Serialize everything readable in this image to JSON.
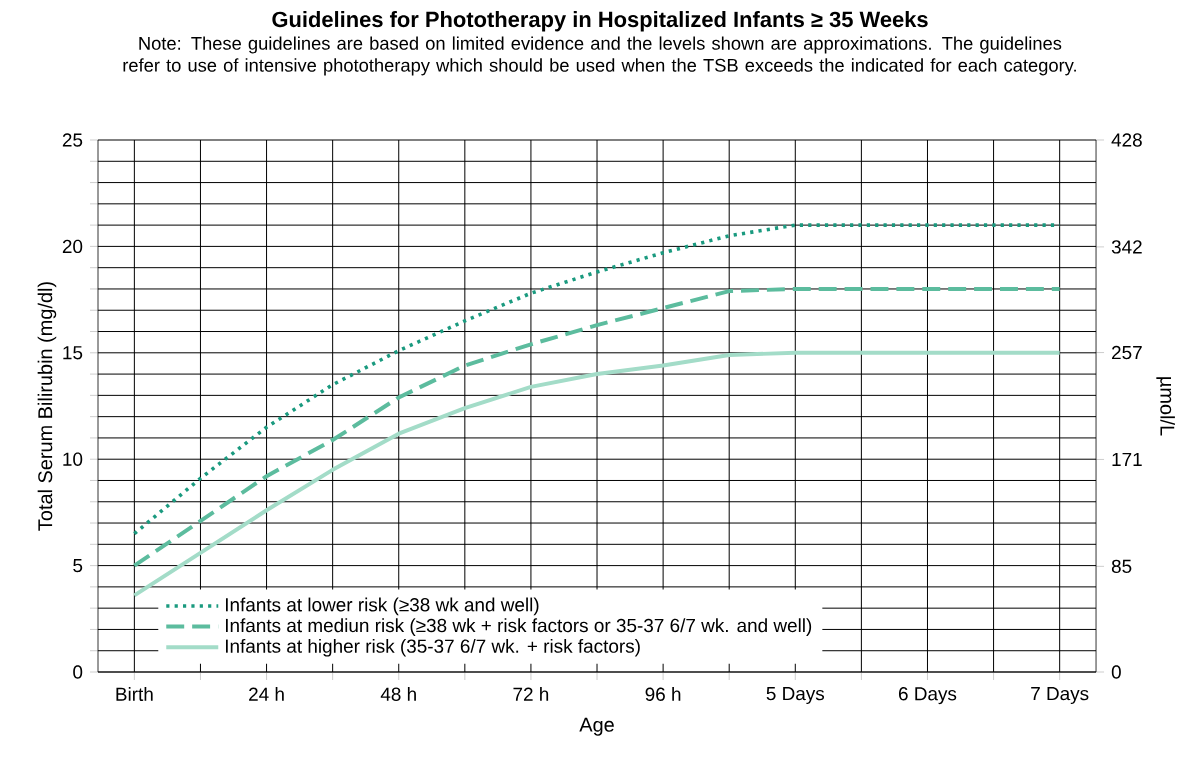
{
  "chart_data": {
    "type": "line",
    "title": "Guidelines for Phototherapy in Hospitalized Infants ≥ 35 Weeks",
    "subtitle": "Note: These guidelines are based on limited evidence and the levels shown are approximations. The guidelines refer to use of intensive phototherapy which should be used when the TSB exceeds the indicated for each category.",
    "xlabel": "Age",
    "ylabel": "Total Serum Bilirubin (mg/dl)",
    "y2label": "µmol/L",
    "categories": [
      "Birth",
      null,
      "24 h",
      null,
      "48 h",
      null,
      "72 h",
      null,
      "96 h",
      null,
      "5 Days",
      null,
      "6 Days",
      null,
      "7 Days"
    ],
    "series": [
      {
        "name": "Infants at lower risk (≥38 wk and well)",
        "color": "#1a9a7f",
        "line_style": "dotted",
        "values": [
          6.5,
          9.1,
          11.5,
          13.5,
          15.1,
          16.5,
          17.8,
          18.8,
          19.7,
          20.5,
          21,
          21,
          21,
          21,
          21
        ]
      },
      {
        "name": "Infants at mediun risk (≥38 wk + risk factors or 35-37 6/7 wk. and well)",
        "color": "#5cbc9e",
        "line_style": "dashed",
        "values": [
          5,
          7.1,
          9.2,
          10.9,
          12.9,
          14.4,
          15.4,
          16.3,
          17.1,
          17.9,
          18,
          18,
          18,
          18,
          18
        ]
      },
      {
        "name": "Infants at higher risk (35-37 6/7 wk. + risk factors)",
        "color": "#a3dcc8",
        "line_style": "solid",
        "values": [
          3.6,
          5.6,
          7.6,
          9.5,
          11.2,
          12.4,
          13.4,
          14,
          14.4,
          14.9,
          15,
          15,
          15,
          15,
          15
        ]
      }
    ],
    "ylim": [
      0,
      25
    ],
    "yticks": [
      0,
      {
        "value": 1,
        "label": null
      },
      {
        "value": 2,
        "label": null
      },
      {
        "value": 3,
        "label": null
      },
      {
        "value": 4,
        "label": null
      },
      5,
      {
        "value": 6,
        "label": null
      },
      {
        "value": 7,
        "label": null
      },
      {
        "value": 8,
        "label": null
      },
      {
        "value": 9,
        "label": null
      },
      10,
      {
        "value": 11,
        "label": null
      },
      {
        "value": 12,
        "label": null
      },
      {
        "value": 13,
        "label": null
      },
      {
        "value": 14,
        "label": null
      },
      15,
      {
        "value": 16,
        "label": null
      },
      {
        "value": 17,
        "label": null
      },
      {
        "value": 18,
        "label": null
      },
      {
        "value": 19,
        "label": null
      },
      20,
      {
        "value": 21,
        "label": null
      },
      {
        "value": 22,
        "label": null
      },
      {
        "value": 23,
        "label": null
      },
      {
        "value": 24,
        "label": null
      },
      25
    ],
    "y2lim": [
      0,
      428
    ],
    "y2ticks": [
      0,
      85,
      171,
      257,
      342,
      428
    ],
    "grid": true,
    "legend": "bottom left",
    "marker": "none"
  }
}
